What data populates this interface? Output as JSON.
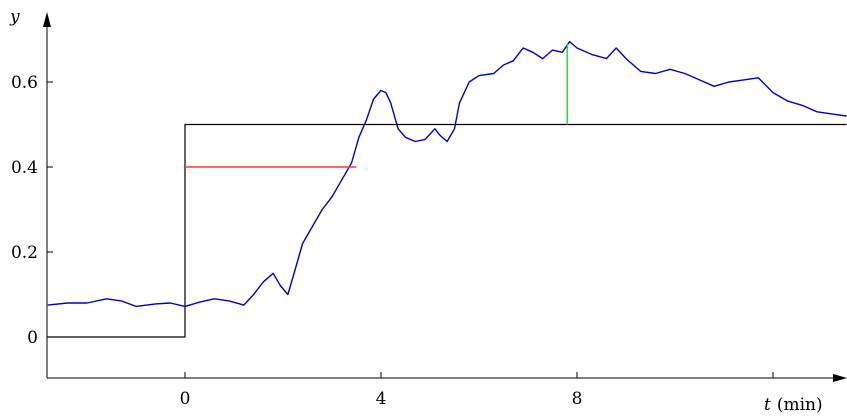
{
  "chart_data": {
    "type": "line",
    "xlabel_var": "t",
    "xlabel_unit": "(min)",
    "ylabel": "y",
    "xlim": [
      -2.8,
      13.5
    ],
    "ylim": [
      -0.1,
      0.76
    ],
    "xticks": [
      {
        "value": 0,
        "label": "0"
      },
      {
        "value": 4,
        "label": "4"
      },
      {
        "value": 8,
        "label": "8"
      },
      {
        "value": 12,
        "label": ""
      }
    ],
    "yticks": [
      {
        "value": 0,
        "label": "0"
      },
      {
        "value": 0.2,
        "label": "0.2"
      },
      {
        "value": 0.4,
        "label": "0.4"
      },
      {
        "value": 0.6,
        "label": "0.6"
      }
    ],
    "grid": false,
    "colors": {
      "response": "#0000cc",
      "step": "#000000",
      "delay_marker": "#ff3333",
      "peak_marker": "#33cc33"
    },
    "series": [
      {
        "role": "response",
        "x": [
          -2.8,
          -2.4,
          -2.0,
          -1.6,
          -1.3,
          -1.0,
          -0.6,
          -0.3,
          0.0,
          0.3,
          0.6,
          0.9,
          1.2,
          1.4,
          1.6,
          1.8,
          1.95,
          2.1,
          2.25,
          2.4,
          2.6,
          2.8,
          3.0,
          3.2,
          3.4,
          3.55,
          3.7,
          3.85,
          4.0,
          4.1,
          4.2,
          4.35,
          4.5,
          4.7,
          4.9,
          5.1,
          5.2,
          5.35,
          5.5,
          5.6,
          5.8,
          6.0,
          6.3,
          6.5,
          6.7,
          6.9,
          7.1,
          7.3,
          7.5,
          7.7,
          7.85,
          8.0,
          8.3,
          8.6,
          8.8,
          9.0,
          9.3,
          9.6,
          9.9,
          10.2,
          10.5,
          10.8,
          11.1,
          11.4,
          11.7,
          12.0,
          12.3,
          12.6,
          12.9,
          13.2,
          13.5
        ],
        "y": [
          0.075,
          0.08,
          0.08,
          0.09,
          0.085,
          0.072,
          0.078,
          0.08,
          0.072,
          0.082,
          0.09,
          0.085,
          0.075,
          0.1,
          0.13,
          0.15,
          0.12,
          0.1,
          0.16,
          0.22,
          0.26,
          0.3,
          0.33,
          0.37,
          0.41,
          0.47,
          0.51,
          0.56,
          0.58,
          0.575,
          0.55,
          0.49,
          0.47,
          0.46,
          0.465,
          0.49,
          0.475,
          0.46,
          0.49,
          0.55,
          0.6,
          0.615,
          0.62,
          0.64,
          0.65,
          0.68,
          0.67,
          0.655,
          0.675,
          0.67,
          0.695,
          0.68,
          0.665,
          0.655,
          0.68,
          0.655,
          0.625,
          0.62,
          0.63,
          0.62,
          0.605,
          0.59,
          0.6,
          0.605,
          0.61,
          0.575,
          0.555,
          0.545,
          0.53,
          0.525,
          0.52
        ]
      },
      {
        "role": "step",
        "x": [
          -2.8,
          0,
          0,
          13.5
        ],
        "y": [
          0,
          0,
          0.5,
          0.5
        ]
      }
    ],
    "markers": [
      {
        "role": "delay",
        "x": [
          0,
          3.5
        ],
        "y": [
          0.4,
          0.4
        ]
      },
      {
        "role": "peak",
        "x": [
          7.8,
          7.8
        ],
        "y": [
          0.5,
          0.69
        ]
      }
    ]
  }
}
